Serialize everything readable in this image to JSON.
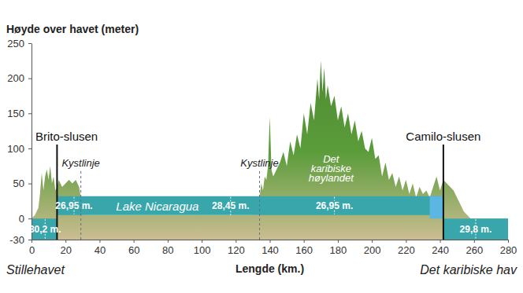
{
  "chart_data": {
    "type": "area",
    "y_label": "Høyde over havet (meter)",
    "x_label": "Lengde (km.)",
    "x_end_labels": {
      "left": "Stillehavet",
      "right": "Det karibiske hav"
    },
    "xlim": [
      0,
      280
    ],
    "xticks": [
      0,
      20,
      40,
      60,
      80,
      100,
      120,
      140,
      160,
      180,
      200,
      220,
      240,
      260,
      280
    ],
    "ylim": [
      -30,
      250
    ],
    "yticks": [
      -30,
      0,
      50,
      100,
      150,
      200,
      250
    ],
    "grid": false,
    "series": [
      {
        "type": "area",
        "color": "#5a9c3a",
        "x": [
          0,
          2,
          4,
          5,
          6,
          7,
          8,
          9,
          10,
          11,
          12,
          13,
          14,
          15,
          16,
          18,
          20,
          22,
          24,
          26,
          28,
          29,
          30,
          40,
          60,
          80,
          100,
          120,
          133,
          134,
          135,
          136,
          137,
          138,
          139,
          140,
          141,
          142,
          144,
          146,
          148,
          150,
          152,
          154,
          156,
          158,
          160,
          162,
          164,
          166,
          168,
          169,
          170,
          171,
          172,
          173,
          174,
          176,
          178,
          180,
          182,
          184,
          186,
          188,
          190,
          192,
          194,
          196,
          198,
          200,
          202,
          204,
          206,
          208,
          210,
          212,
          214,
          216,
          218,
          220,
          222,
          224,
          226,
          228,
          230,
          232,
          234,
          236,
          238,
          240,
          242,
          244,
          246,
          248,
          250,
          252,
          254,
          256,
          258,
          260,
          280
        ],
        "values": [
          0,
          5,
          15,
          35,
          65,
          40,
          60,
          70,
          55,
          75,
          50,
          60,
          40,
          45,
          55,
          45,
          50,
          55,
          50,
          55,
          45,
          30,
          5,
          5,
          5,
          5,
          5,
          5,
          5,
          30,
          50,
          40,
          60,
          55,
          75,
          145,
          70,
          60,
          70,
          80,
          95,
          75,
          110,
          90,
          120,
          100,
          150,
          120,
          165,
          140,
          200,
          170,
          225,
          180,
          215,
          170,
          190,
          160,
          175,
          140,
          160,
          130,
          150,
          120,
          140,
          110,
          125,
          100,
          95,
          115,
          85,
          90,
          60,
          80,
          55,
          65,
          45,
          60,
          40,
          55,
          35,
          50,
          30,
          45,
          35,
          40,
          30,
          45,
          60,
          40,
          55,
          50,
          45,
          40,
          30,
          20,
          10,
          5,
          0,
          0,
          0
        ]
      },
      {
        "type": "range",
        "color": "#38a6aa",
        "x": [
          0,
          15,
          15,
          242,
          242,
          280
        ],
        "values": [
          0,
          0,
          32,
          32,
          0,
          0
        ],
        "base": [
          -30,
          -30,
          5,
          5,
          -30,
          -30
        ]
      },
      {
        "type": "range",
        "color": "#5cb6e2",
        "x": [
          234,
          242
        ],
        "values": [
          32,
          32
        ],
        "base": [
          0,
          0
        ]
      }
    ],
    "locks": [
      {
        "label": "Brito-slusen",
        "x": 15
      },
      {
        "label": "Camilo-slusen",
        "x": 242
      }
    ],
    "coastlines": [
      {
        "label": "Kystlinje",
        "x": 29
      },
      {
        "label": "Kystlinje",
        "x": 134
      }
    ],
    "depths": [
      {
        "label": "30,2 m.",
        "value": 30.2,
        "x": 8
      },
      {
        "label": "26,95 m.",
        "value": 26.95,
        "x": 25
      },
      {
        "label": "28,45 m.",
        "value": 28.45,
        "x": 117
      },
      {
        "label": "26,95 m.",
        "value": 26.95,
        "x": 178
      },
      {
        "label": "29,8 m.",
        "value": 29.8,
        "x": 261
      }
    ],
    "labels": [
      {
        "lines": [
          "Lake Nicaragua"
        ],
        "x": 74,
        "y": 12
      },
      {
        "lines": [
          "Det",
          "karibiske",
          "høylandet"
        ],
        "x": 176,
        "y": 80
      }
    ]
  }
}
